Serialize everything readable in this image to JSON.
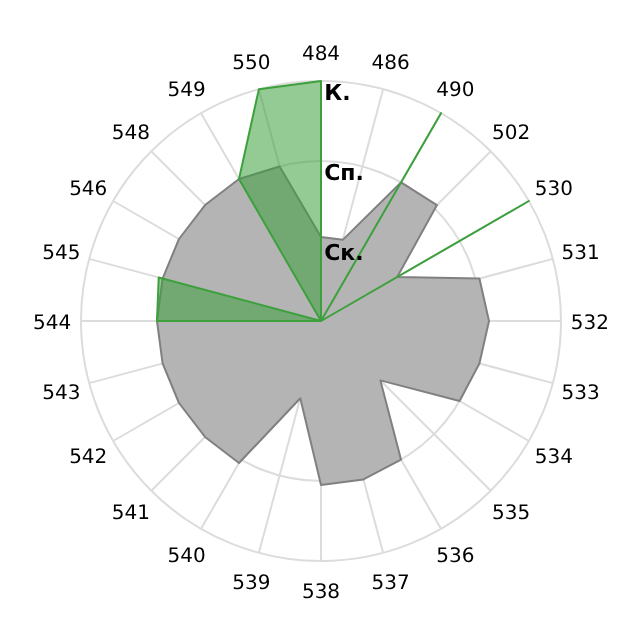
{
  "chart_data": {
    "type": "radar",
    "categories": [
      "484",
      "486",
      "490",
      "502",
      "530",
      "531",
      "532",
      "533",
      "534",
      "535",
      "536",
      "537",
      "538",
      "539",
      "540",
      "541",
      "542",
      "543",
      "544",
      "545",
      "546",
      "548",
      "549",
      "550"
    ],
    "series": [
      {
        "type": "area",
        "color": "#b4b4b4",
        "values": [
          1.05,
          1.05,
          2.0,
          2.05,
          1.1,
          2.05,
          2.1,
          2.05,
          2.0,
          1.05,
          2.0,
          2.05,
          2.05,
          1.0,
          2.05,
          2.05,
          2.05,
          2.05,
          2.05,
          2.05,
          2.05,
          2.05,
          2.05,
          2.0
        ]
      },
      {
        "type": "area",
        "color": "#3ca03c",
        "values": [
          3.0,
          0,
          3.0,
          0,
          3.0,
          0,
          0,
          0,
          0,
          0,
          0,
          0,
          0,
          0,
          0,
          0,
          0,
          0,
          2.05,
          2.1,
          0,
          0,
          2.05,
          3.0
        ]
      }
    ],
    "ylim": [
      0,
      3
    ],
    "yticks": [
      {
        "value": 1,
        "label": "Ск."
      },
      {
        "value": 2,
        "label": "Сп."
      },
      {
        "value": 3,
        "label": "К."
      }
    ],
    "grid": true
  }
}
